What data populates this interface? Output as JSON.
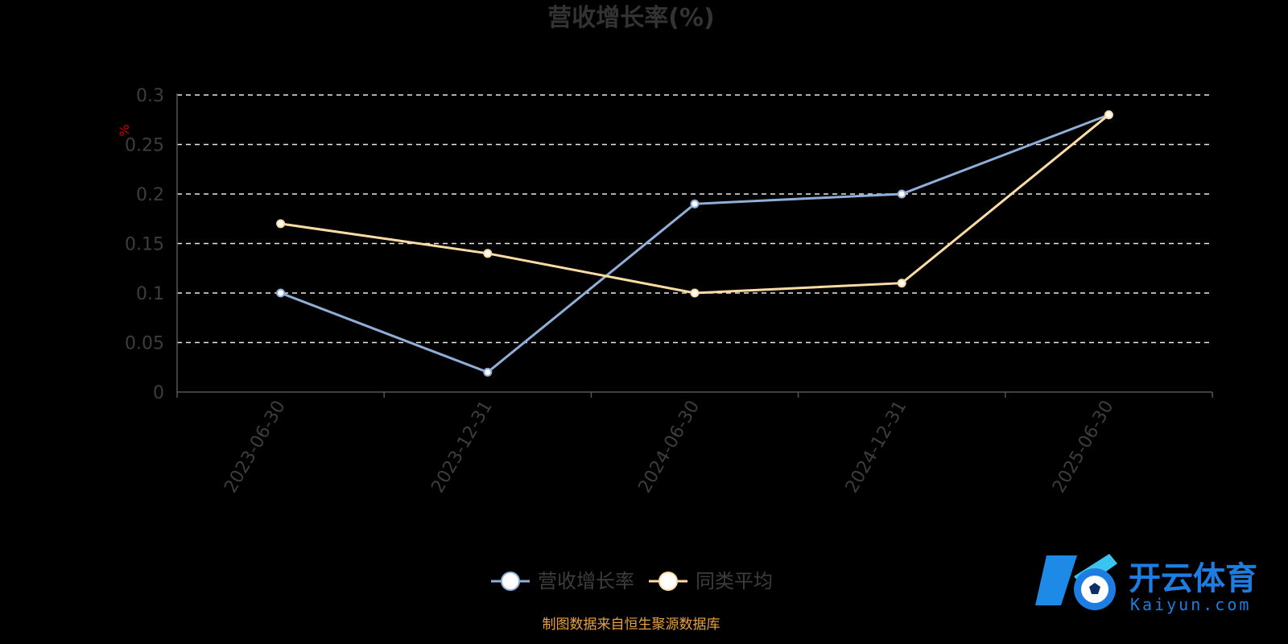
{
  "chart_data": {
    "type": "line",
    "title": "营收增长率(%)",
    "ylabel": "%",
    "categories": [
      "2023-06-30",
      "2023-12-31",
      "2024-06-30",
      "2024-12-31",
      "2025-06-30"
    ],
    "ylim": [
      0,
      0.3
    ],
    "yticks": [
      "0",
      "0.05",
      "0.1",
      "0.15",
      "0.2",
      "0.25",
      "0.3"
    ],
    "grid": true,
    "legend_position": "bottom",
    "series": [
      {
        "name": "营收增长率",
        "color": "#8fafd9",
        "values": [
          0.1,
          0.02,
          0.19,
          0.2,
          0.28
        ]
      },
      {
        "name": "同类平均",
        "color": "#fcdca4",
        "values": [
          0.17,
          0.14,
          0.1,
          0.11,
          0.28
        ]
      }
    ]
  },
  "source_note": "制图数据来自恒生聚源数据库",
  "logo": {
    "cn": "开云体育",
    "en": "Kaiyun.com"
  }
}
